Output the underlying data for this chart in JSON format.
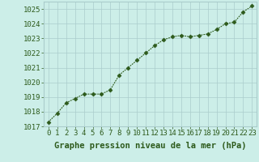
{
  "x": [
    0,
    1,
    2,
    3,
    4,
    5,
    6,
    7,
    8,
    9,
    10,
    11,
    12,
    13,
    14,
    15,
    16,
    17,
    18,
    19,
    20,
    21,
    22,
    23
  ],
  "y": [
    1017.3,
    1017.9,
    1018.6,
    1018.9,
    1019.2,
    1019.2,
    1019.2,
    1019.5,
    1020.5,
    1021.0,
    1021.5,
    1022.0,
    1022.5,
    1022.9,
    1023.1,
    1023.2,
    1023.1,
    1023.2,
    1023.3,
    1023.6,
    1024.0,
    1024.1,
    1024.8,
    1025.2
  ],
  "line_color": "#2d5a1b",
  "marker_color": "#2d5a1b",
  "bg_color": "#cceee8",
  "grid_color": "#aacccc",
  "xlabel": "Graphe pression niveau de la mer (hPa)",
  "ylim": [
    1017,
    1025.5
  ],
  "xlim": [
    -0.5,
    23.5
  ],
  "yticks": [
    1017,
    1018,
    1019,
    1020,
    1021,
    1022,
    1023,
    1024,
    1025
  ],
  "xticks": [
    0,
    1,
    2,
    3,
    4,
    5,
    6,
    7,
    8,
    9,
    10,
    11,
    12,
    13,
    14,
    15,
    16,
    17,
    18,
    19,
    20,
    21,
    22,
    23
  ],
  "xlabel_fontsize": 7.5,
  "tick_fontsize": 6.5,
  "marker_size": 2.5,
  "line_width": 0.8
}
